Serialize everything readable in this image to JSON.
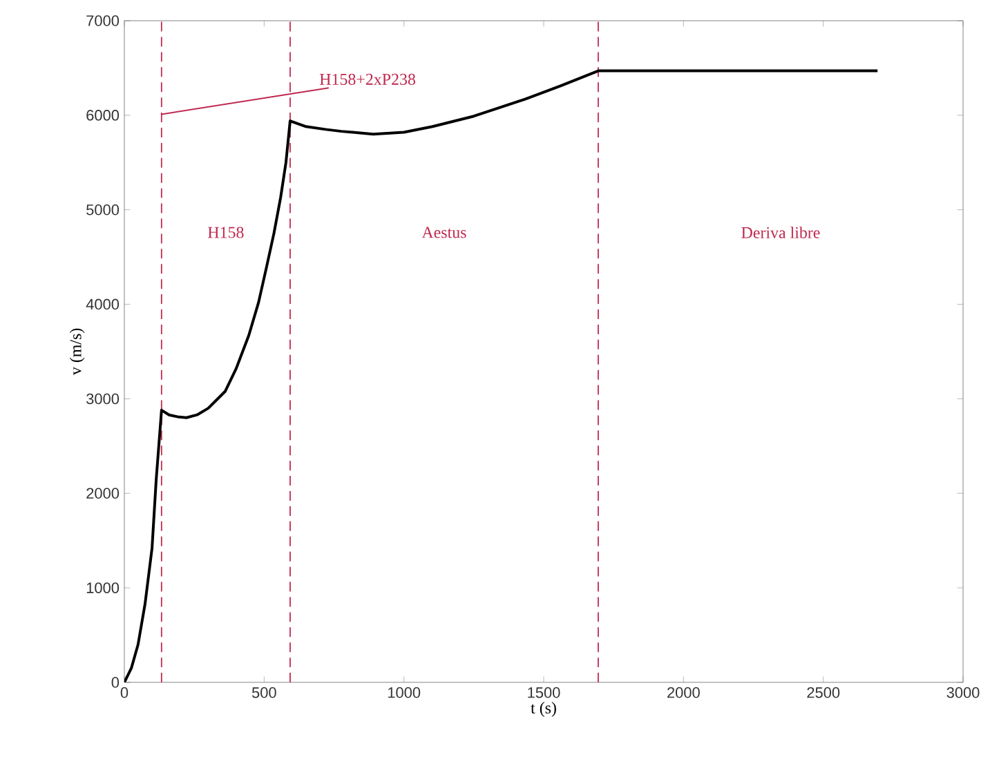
{
  "chart_data": {
    "type": "line",
    "xlabel": "t (s)",
    "ylabel": "v (m/s)",
    "x": [
      0,
      25,
      49,
      74,
      99,
      114,
      133,
      160,
      190,
      222,
      260,
      300,
      361,
      400,
      445,
      480,
      509,
      535,
      559,
      578,
      593,
      650,
      720,
      776,
      890,
      1000,
      1102,
      1250,
      1433,
      1560,
      1695,
      2694
    ],
    "series": [
      {
        "color": "#000000",
        "values": [
          0,
          150,
          400,
          830,
          1420,
          2150,
          2880,
          2830,
          2810,
          2800,
          2830,
          2900,
          3080,
          3320,
          3670,
          4020,
          4400,
          4750,
          5130,
          5500,
          5940,
          5880,
          5850,
          5830,
          5800,
          5820,
          5880,
          5990,
          6170,
          6310,
          6470,
          6470
        ]
      }
    ],
    "xlim": [
      0,
      3000
    ],
    "ylim": [
      0,
      7000
    ],
    "xticks": [
      0,
      500,
      1000,
      1500,
      2000,
      2500,
      3000
    ],
    "yticks": [
      0,
      1000,
      2000,
      3000,
      4000,
      5000,
      6000,
      7000
    ],
    "grid": false,
    "marker": "none",
    "line_style": "solid",
    "ref_lines": [
      {
        "axis": "x",
        "value": 133,
        "color": "#c0294f",
        "line_style": "dashed"
      },
      {
        "axis": "x",
        "value": 593,
        "color": "#c0294f",
        "line_style": "dashed"
      },
      {
        "axis": "x",
        "value": 1695,
        "color": "#c0294f",
        "line_style": "dashed"
      }
    ],
    "annotations": [
      {
        "text": "H158+2xP238",
        "x": 133,
        "y": 6010
      },
      "H158",
      "Aestus",
      "Deriva libre"
    ]
  }
}
